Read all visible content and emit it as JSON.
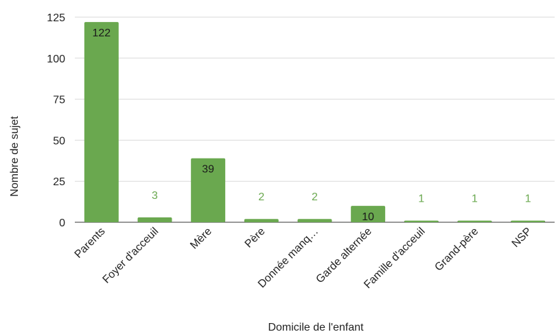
{
  "chart_data": {
    "type": "bar",
    "xlabel": "Domicile de l'enfant",
    "ylabel": "Nombre de sujet",
    "categories": [
      "Parents",
      "Foyer d'acceuil",
      "Mère",
      "Père",
      "Donnée manq…",
      "Garde alternée",
      "Famille d'acceuil",
      "Grand-père",
      "NSP"
    ],
    "values": [
      122,
      3,
      39,
      2,
      2,
      10,
      1,
      1,
      1
    ],
    "ylim": [
      0,
      125
    ],
    "yticks": [
      0,
      25,
      50,
      75,
      100,
      125
    ],
    "grid": true,
    "legend": "none",
    "colors": {
      "bar": "#6aa84f",
      "label_inside": "#1a1a1a",
      "label_outside": "#6aa84f"
    }
  }
}
